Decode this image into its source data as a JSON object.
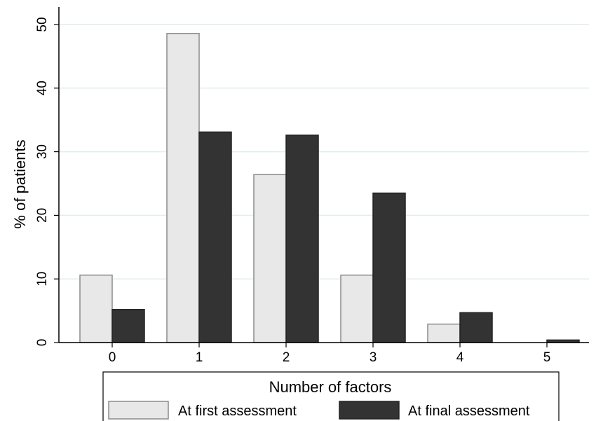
{
  "chart_data": {
    "type": "bar",
    "categories": [
      "0",
      "1",
      "2",
      "3",
      "4",
      "5"
    ],
    "series": [
      {
        "name": "At first assessment",
        "values": [
          10.6,
          48.6,
          26.4,
          10.6,
          2.9,
          0
        ],
        "color": "#e8e8e8",
        "stroke": "#8c8c8c"
      },
      {
        "name": "At final assessment",
        "values": [
          5.2,
          33.1,
          32.6,
          23.5,
          4.7,
          0.4
        ],
        "color": "#333333",
        "stroke": "#222222"
      }
    ],
    "ylabel": "% of patients",
    "yticks": [
      "0",
      "10",
      "20",
      "30",
      "40",
      "50"
    ],
    "ylim": [
      0,
      50
    ],
    "legend_title": "Number of factors",
    "legend_position": "bottom",
    "grid": true
  }
}
